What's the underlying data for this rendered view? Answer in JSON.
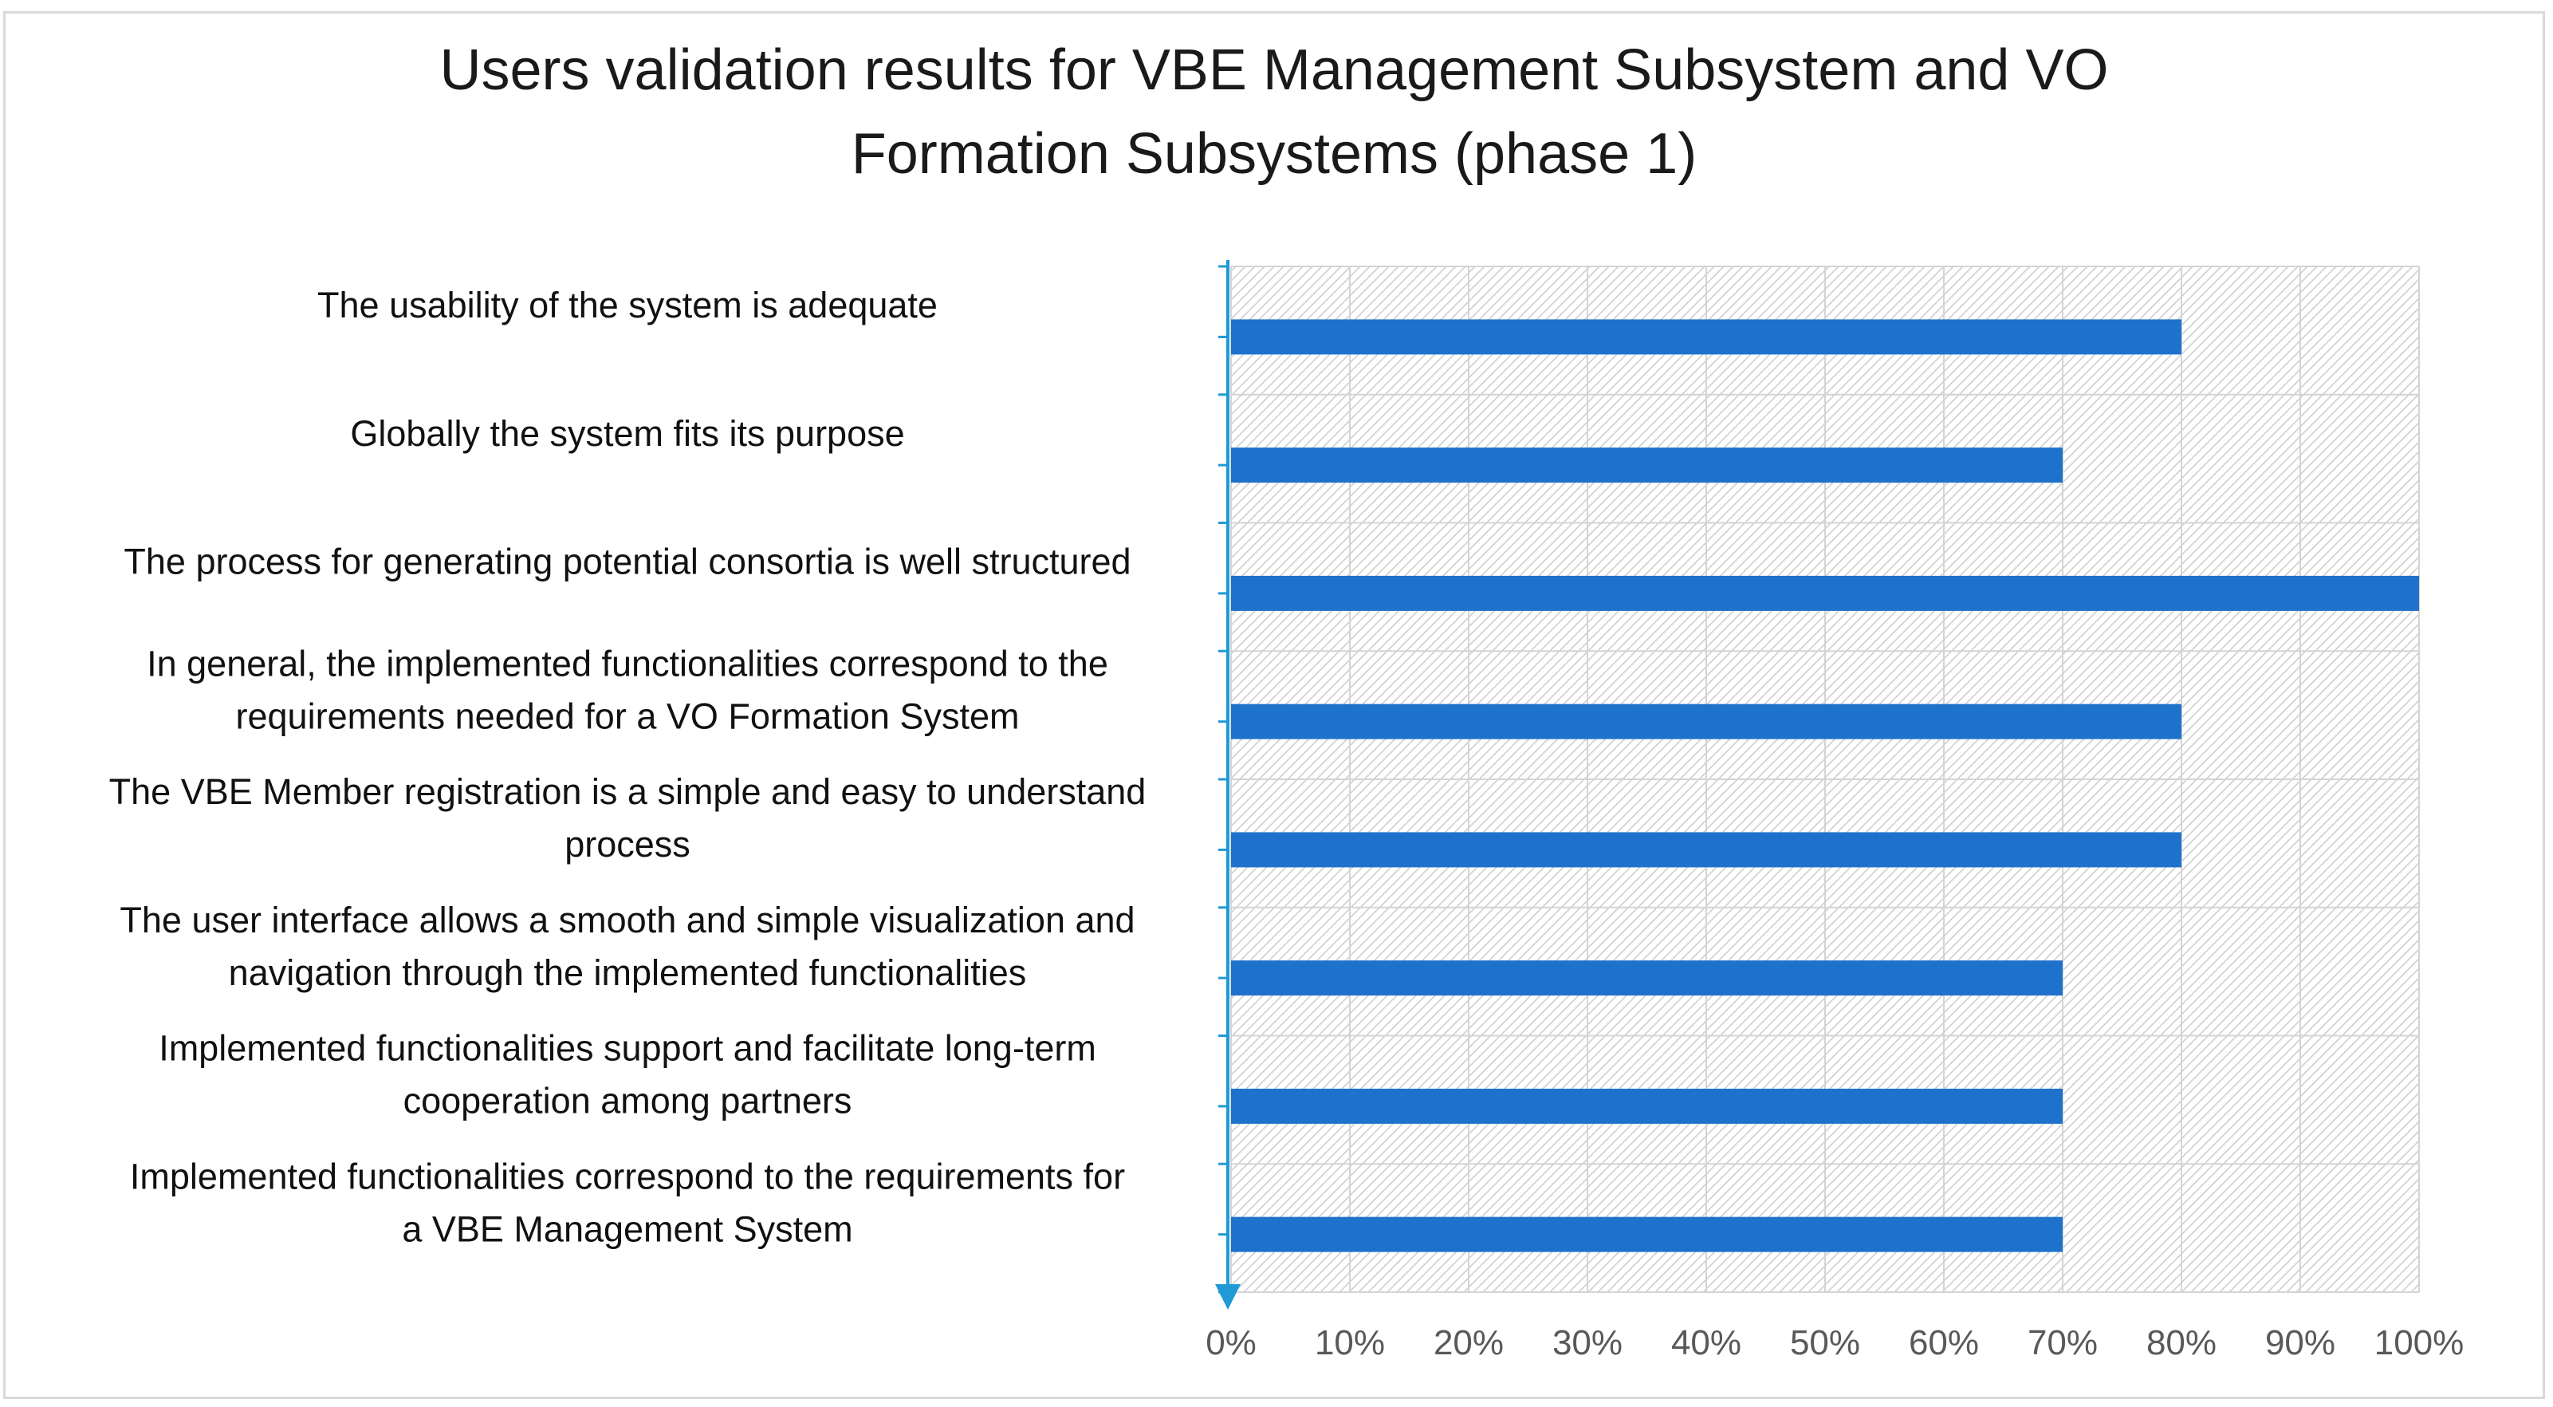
{
  "chart_data": {
    "type": "bar",
    "orientation": "horizontal",
    "title": "Users validation results for VBE  Management Subsystem and VO Formation Subsystems (phase 1)",
    "title_lines": [
      "Users validation results for VBE  Management Subsystem and VO",
      "Formation Subsystems (phase 1)"
    ],
    "categories": [
      "The usability of the system is adequate",
      "Globally the system fits its purpose",
      "The process for generating potential consortia is well structured",
      "In general, the implemented functionalities correspond to the requirements needed for a VO Formation System",
      "The VBE Member registration is a simple and easy to understand process",
      "The user interface allows a smooth and simple visualization and navigation through the implemented functionalities",
      "Implemented functionalities support and facilitate long-term cooperation among partners",
      "Implemented functionalities correspond to the requirements  for a VBE Management System"
    ],
    "category_lines": [
      [
        "The usability of the system is adequate"
      ],
      [
        "Globally the system fits its purpose"
      ],
      [
        "The process for generating potential consortia is well structured"
      ],
      [
        "In general, the implemented functionalities correspond to the",
        "requirements needed for a VO Formation System"
      ],
      [
        "The VBE Member registration is a simple and easy to understand",
        "process"
      ],
      [
        "The user interface allows a smooth and simple visualization and",
        "navigation through the implemented functionalities"
      ],
      [
        "Implemented functionalities support and facilitate long-term",
        "cooperation among partners"
      ],
      [
        "Implemented functionalities correspond to the requirements  for",
        "a VBE Management System"
      ]
    ],
    "values": [
      80,
      70,
      100,
      80,
      80,
      70,
      70,
      70
    ],
    "unit": "%",
    "xlim": [
      0,
      100
    ],
    "xticks": [
      0,
      10,
      20,
      30,
      40,
      50,
      60,
      70,
      80,
      90,
      100
    ],
    "xtick_labels": [
      "0%",
      "10%",
      "20%",
      "30%",
      "40%",
      "50%",
      "60%",
      "70%",
      "80%",
      "90%",
      "100%"
    ],
    "xlabel": "",
    "ylabel": "",
    "grid": true,
    "legend": "none",
    "bar_color": "#1f72cc",
    "axis_color": "#1f9ad6"
  }
}
